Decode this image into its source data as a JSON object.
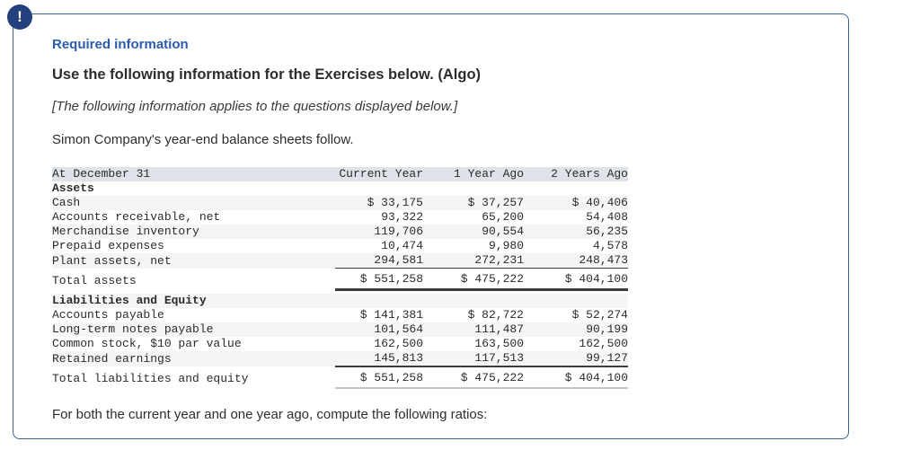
{
  "alert_icon": {
    "glyph": "!"
  },
  "panel": {
    "required_label": "Required information",
    "title": "Use the following information for the Exercises below. (Algo)",
    "note": "[The following information applies to the questions displayed below.]",
    "intro": "Simon Company's year-end balance sheets follow.",
    "footer": "For both the current year and one year ago, compute the following ratios:"
  },
  "table": {
    "header": {
      "label": "At December 31",
      "columns": [
        "Current Year",
        "1 Year Ago",
        "2 Years Ago"
      ]
    },
    "rows": [
      {
        "name": "row-assets-section",
        "label": "Assets",
        "values": [
          "",
          "",
          ""
        ],
        "classes": "section"
      },
      {
        "name": "row-cash",
        "label": "Cash",
        "values": [
          "$ 33,175",
          "$ 37,257",
          "$ 40,406"
        ],
        "classes": "striped"
      },
      {
        "name": "row-accounts-receivable",
        "label": "Accounts receivable, net",
        "values": [
          "93,322",
          "65,200",
          "54,408"
        ],
        "classes": ""
      },
      {
        "name": "row-merchandise-inventory",
        "label": "Merchandise inventory",
        "values": [
          "119,706",
          "90,554",
          "56,235"
        ],
        "classes": "striped"
      },
      {
        "name": "row-prepaid-expenses",
        "label": "Prepaid expenses",
        "values": [
          "10,474",
          "9,980",
          "4,578"
        ],
        "classes": ""
      },
      {
        "name": "row-plant-assets",
        "label": "Plant assets, net",
        "values": [
          "294,581",
          "272,231",
          "248,473"
        ],
        "classes": "striped rule-thin"
      },
      {
        "name": "row-total-assets",
        "label": "Total assets",
        "values": [
          "$ 551,258",
          "$ 475,222",
          "$ 404,100"
        ],
        "classes": "pad rule-thick"
      },
      {
        "name": "spacer-row",
        "label": "",
        "values": [
          "",
          "",
          ""
        ],
        "classes": "spacer"
      },
      {
        "name": "row-liabilities-equity-section",
        "label": "Liabilities and Equity",
        "values": [
          "",
          "",
          ""
        ],
        "classes": "section striped"
      },
      {
        "name": "row-accounts-payable",
        "label": "Accounts payable",
        "values": [
          "$ 141,381",
          "$ 82,722",
          "$ 52,274"
        ],
        "classes": ""
      },
      {
        "name": "row-long-term-notes",
        "label": "Long-term notes payable",
        "values": [
          "101,564",
          "111,487",
          "90,199"
        ],
        "classes": "striped"
      },
      {
        "name": "row-common-stock",
        "label": "Common stock, $10 par value",
        "values": [
          "162,500",
          "163,500",
          "162,500"
        ],
        "classes": ""
      },
      {
        "name": "row-retained-earnings",
        "label": "Retained earnings",
        "values": [
          "145,813",
          "117,513",
          "99,127"
        ],
        "classes": "striped rule-medium"
      },
      {
        "name": "row-total-liabilities-equity",
        "label": "Total liabilities and equity",
        "values": [
          "$ 551,258",
          "$ 475,222",
          "$ 404,100"
        ],
        "classes": "pad rule-light"
      }
    ]
  },
  "colors": {
    "panel_border": "#3d619b",
    "alert_badge_bg": "#24407c",
    "required_label_text": "#2a5caa",
    "table_header_bg": "#dee3ea",
    "table_stripe_bg": "#f3f5f7",
    "body_text": "#2d2d2d"
  }
}
